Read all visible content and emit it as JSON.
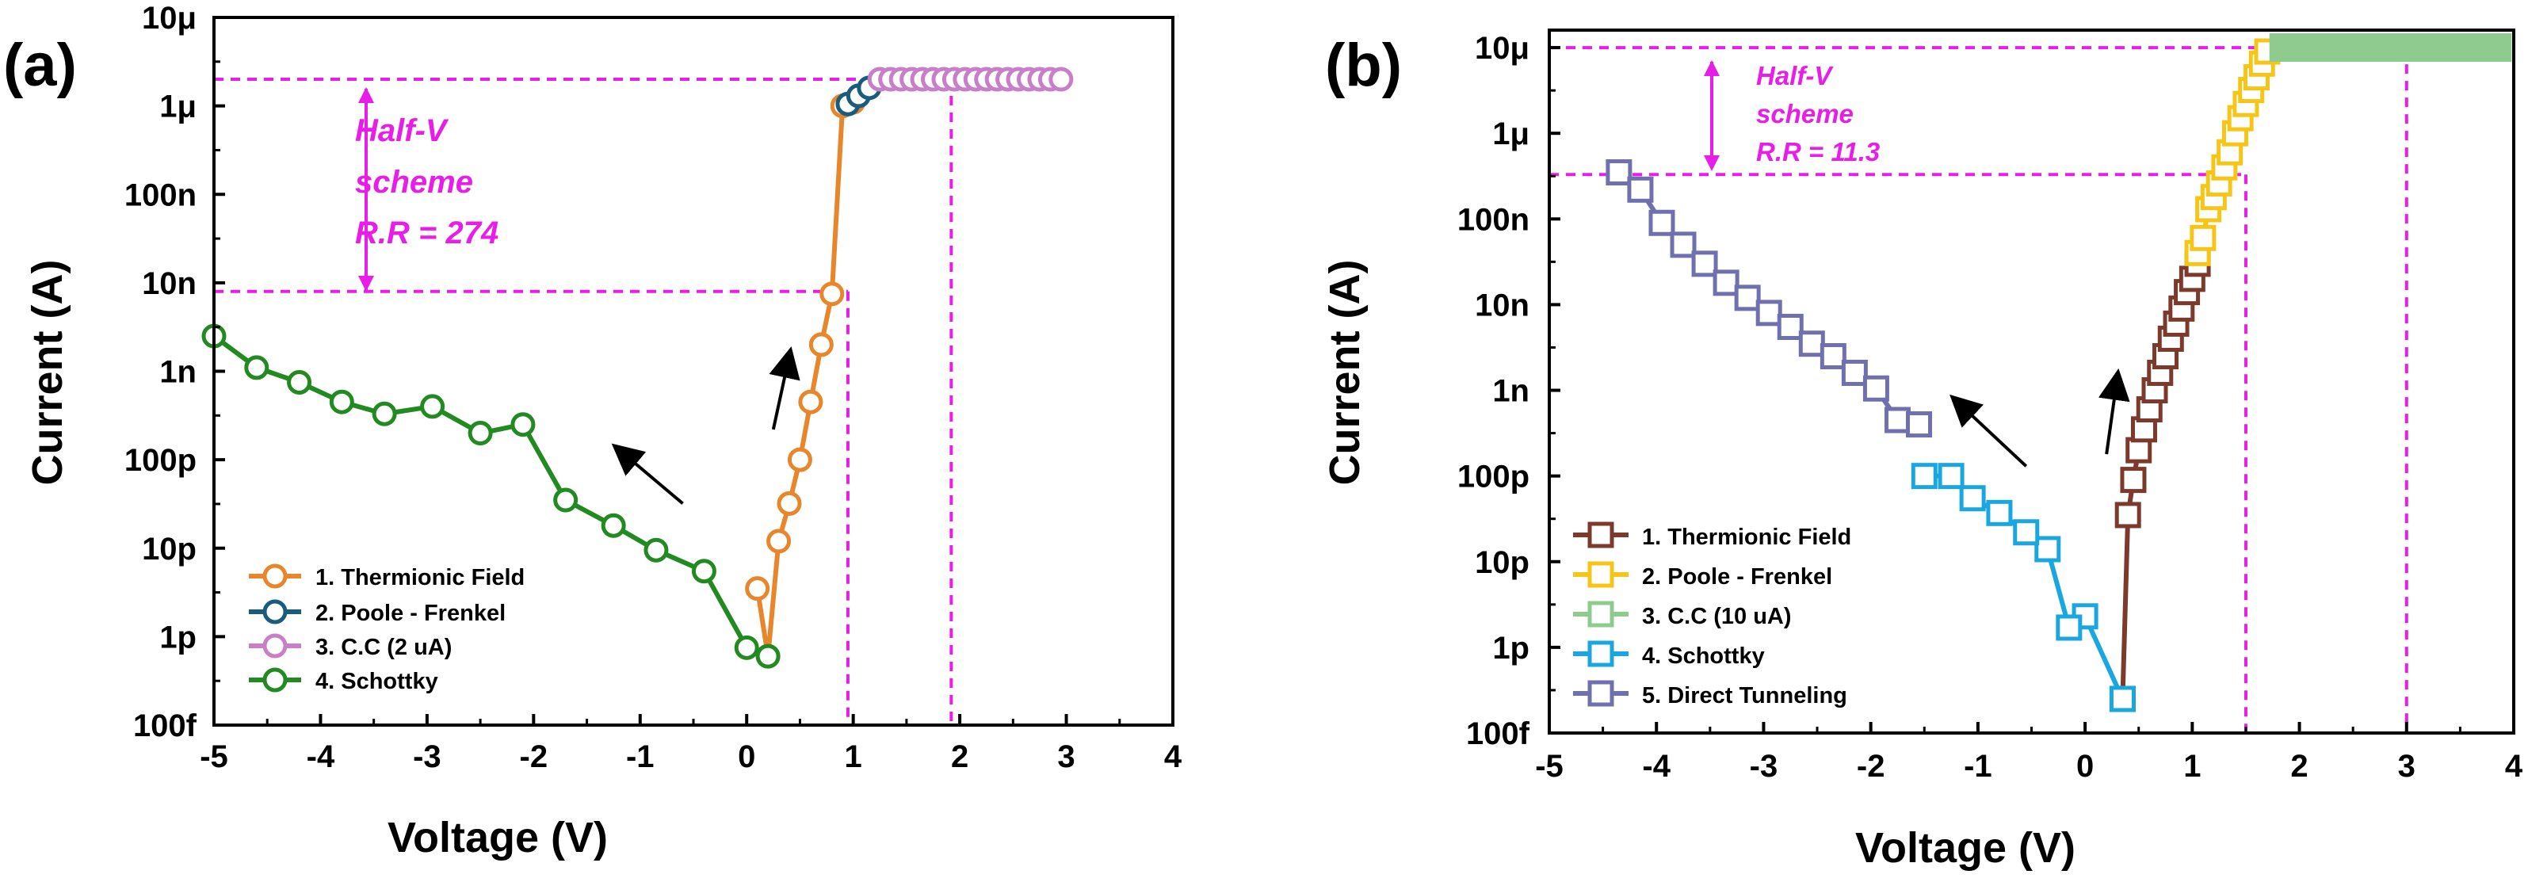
{
  "chart_data": [
    {
      "panel_label": "(a)",
      "type": "scatter",
      "xlabel": "Voltage (V)",
      "ylabel": "Current (A)",
      "xlim": [
        -5,
        4
      ],
      "ylim": [
        1e-13,
        1e-05
      ],
      "yscale": "log",
      "marker": "circle",
      "x_ticks": [
        -5,
        -4,
        -3,
        -2,
        -1,
        0,
        1,
        2,
        3,
        4
      ],
      "x_tick_labels": [
        "-5",
        "-4",
        "-3",
        "-2",
        "-1",
        "0",
        "1",
        "2",
        "3",
        "4"
      ],
      "y_ticks": [
        1e-13,
        1e-12,
        1e-11,
        1e-10,
        1e-09,
        1e-08,
        1e-07,
        1e-06,
        1e-05
      ],
      "y_tick_labels": [
        "100f",
        "1p",
        "10p",
        "100p",
        "1n",
        "10n",
        "100n",
        "1μ",
        "10μ"
      ],
      "legend_position": "bottom-left",
      "series": [
        {
          "name": "1. Thermionic Field",
          "color": "#e8862c",
          "x": [
            0.1,
            0.2,
            0.3,
            0.4,
            0.5,
            0.6,
            0.7,
            0.8,
            0.9,
            1.0
          ],
          "y": [
            3.5e-12,
            6e-13,
            1.2e-11,
            3.2e-11,
            1e-10,
            4.5e-10,
            2e-09,
            7.5e-09,
            1e-06,
            1.1e-06
          ]
        },
        {
          "name": "2. Poole - Frenkel",
          "color": "#1a5c7e",
          "x": [
            0.95,
            1.05,
            1.15
          ],
          "y": [
            1.05e-06,
            1.3e-06,
            1.6e-06
          ]
        },
        {
          "name": "3. C.C (2 uA)",
          "color": "#c77fc7",
          "x": [
            1.25,
            1.35,
            1.45,
            1.55,
            1.65,
            1.75,
            1.85,
            1.95,
            2.05,
            2.15,
            2.25,
            2.35,
            2.45,
            2.55,
            2.65,
            2.75,
            2.85,
            2.95
          ],
          "y": [
            2e-06,
            2e-06,
            2e-06,
            2e-06,
            2e-06,
            2e-06,
            2e-06,
            2e-06,
            2e-06,
            2e-06,
            2e-06,
            2e-06,
            2e-06,
            2e-06,
            2e-06,
            2e-06,
            2e-06,
            2e-06
          ]
        },
        {
          "name": "4. Schottky",
          "color": "#218a21",
          "x": [
            -5.0,
            -4.6,
            -4.2,
            -3.8,
            -3.4,
            -2.95,
            -2.5,
            -2.1,
            -1.7,
            -1.25,
            -0.85,
            -0.4,
            0.0,
            0.2
          ],
          "y": [
            2.5e-09,
            1.1e-09,
            7.5e-10,
            4.5e-10,
            3.3e-10,
            4e-10,
            2e-10,
            2.5e-10,
            3.5e-11,
            1.8e-11,
            9.5e-12,
            5.5e-12,
            7.5e-13,
            6e-13
          ]
        }
      ],
      "reference_lines": {
        "y_high": 2e-06,
        "y_low": 8e-09,
        "x_set": 0.95,
        "x_read": 1.92
      },
      "annotations": {
        "line1": "Half-V",
        "line2": "scheme",
        "line3": "R.R = 274"
      },
      "arrows": [
        {
          "from": [
            -0.6,
            3.2e-11
          ],
          "to": [
            -1.2,
            1.3e-10
          ]
        },
        {
          "from": [
            0.25,
            2.2e-10
          ],
          "to": [
            0.4,
            1.5e-09
          ]
        }
      ]
    },
    {
      "panel_label": "(b)",
      "type": "scatter",
      "xlabel": "Voltage (V)",
      "ylabel": "Current (A)",
      "xlim": [
        -5,
        4
      ],
      "ylim": [
        1e-13,
        1.6e-05
      ],
      "yscale": "log",
      "marker": "square",
      "x_ticks": [
        -5,
        -4,
        -3,
        -2,
        -1,
        0,
        1,
        2,
        3,
        4
      ],
      "x_tick_labels": [
        "-5",
        "-4",
        "-3",
        "-2",
        "-1",
        "0",
        "1",
        "2",
        "3",
        "4"
      ],
      "y_ticks": [
        1e-13,
        1e-12,
        1e-11,
        1e-10,
        1e-09,
        1e-08,
        1e-07,
        1e-06,
        1e-05
      ],
      "y_tick_labels": [
        "100f",
        "1p",
        "10p",
        "100p",
        "1n",
        "10n",
        "100n",
        "1μ",
        "10μ"
      ],
      "legend_position": "bottom-left",
      "series": [
        {
          "name": "1. Thermionic Field",
          "color": "#7b3a2c",
          "x": [
            0.35,
            0.4,
            0.45,
            0.5,
            0.55,
            0.6,
            0.65,
            0.7,
            0.75,
            0.8,
            0.85,
            0.9,
            0.95,
            1.0,
            1.05
          ],
          "y": [
            2.5e-13,
            3.5e-11,
            9e-11,
            2e-10,
            3.5e-10,
            6e-10,
            1e-09,
            1.6e-09,
            2.5e-09,
            4e-09,
            6e-09,
            9e-09,
            1.4e-08,
            2e-08,
            3e-08
          ]
        },
        {
          "name": "2. Poole - Frenkel",
          "color": "#f5c518",
          "x": [
            1.05,
            1.1,
            1.15,
            1.2,
            1.25,
            1.3,
            1.35,
            1.4,
            1.45,
            1.5,
            1.55,
            1.6,
            1.65,
            1.7
          ],
          "y": [
            4e-08,
            6e-08,
            1.3e-07,
            1.8e-07,
            2.6e-07,
            4e-07,
            6e-07,
            1e-06,
            1.5e-06,
            2.2e-06,
            3.2e-06,
            4.5e-06,
            6.5e-06,
            9e-06
          ]
        },
        {
          "name": "3. C.C (10 uA)",
          "color": "#8fcb8f",
          "x": [
            1.72,
            3.98
          ],
          "y": [
            1e-05,
            1e-05
          ]
        },
        {
          "name": "4. Schottky",
          "color": "#1aa7df",
          "x": [
            0.35,
            0.0,
            -0.15,
            -0.35,
            -0.55,
            -0.8,
            -1.05,
            -1.25,
            -1.5
          ],
          "y": [
            2.5e-13,
            2.3e-12,
            1.7e-12,
            1.4e-11,
            2.2e-11,
            3.7e-11,
            5.5e-11,
            1e-10,
            1e-10
          ]
        },
        {
          "name": "5. Direct Tunneling",
          "color": "#6f70ad",
          "x": [
            -4.35,
            -4.15,
            -3.95,
            -3.75,
            -3.55,
            -3.35,
            -3.15,
            -2.95,
            -2.75,
            -2.55,
            -2.35,
            -2.15,
            -1.95,
            -1.75,
            -1.55
          ],
          "y": [
            3.5e-07,
            2.2e-07,
            9e-08,
            5e-08,
            3e-08,
            1.8e-08,
            1.2e-08,
            8e-09,
            5.5e-09,
            3.5e-09,
            2.5e-09,
            1.6e-09,
            1.05e-09,
            4.5e-10,
            4e-10
          ]
        }
      ],
      "reference_lines": {
        "y_high": 1e-05,
        "y_low": 3.3e-07,
        "x_set": 1.5,
        "x_read": 3.0
      },
      "annotations": {
        "line1": "Half-V",
        "line2": "scheme",
        "line3": "R.R = 11.3"
      },
      "arrows": [
        {
          "from": [
            -0.55,
            1.3e-10
          ],
          "to": [
            -1.2,
            7.5e-10
          ]
        },
        {
          "from": [
            0.2,
            1.8e-10
          ],
          "to": [
            0.3,
            1.4e-09
          ]
        }
      ]
    }
  ]
}
